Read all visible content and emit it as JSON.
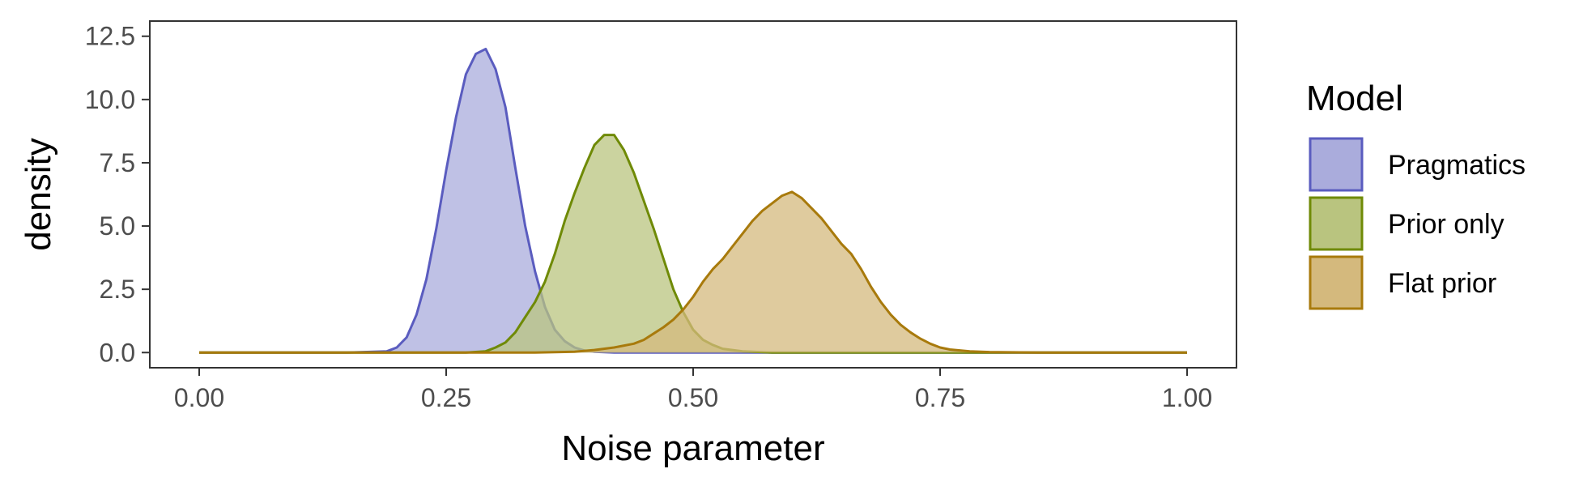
{
  "chart_data": {
    "type": "area",
    "subtype": "density",
    "xlabel": "Noise parameter",
    "ylabel": "density",
    "xlim": [
      0,
      1
    ],
    "ylim": [
      0,
      12.5
    ],
    "xticks": [
      "0.00",
      "0.25",
      "0.50",
      "0.75",
      "1.00"
    ],
    "yticks": [
      "0.0",
      "2.5",
      "5.0",
      "7.5",
      "10.0",
      "12.5"
    ],
    "grid": false,
    "legend": {
      "title": "Model",
      "position": "right"
    },
    "series": [
      {
        "name": "Pragmatics",
        "fill": "#aaacdc",
        "stroke": "#5a5cbf",
        "x": [
          0,
          0.15,
          0.19,
          0.2,
          0.21,
          0.22,
          0.23,
          0.24,
          0.25,
          0.26,
          0.27,
          0.28,
          0.29,
          0.3,
          0.31,
          0.32,
          0.33,
          0.34,
          0.35,
          0.36,
          0.37,
          0.38,
          0.39,
          0.4,
          0.42,
          0.45,
          1
        ],
        "y": [
          0,
          0,
          0.05,
          0.2,
          0.6,
          1.5,
          2.9,
          4.9,
          7.2,
          9.3,
          11.0,
          11.8,
          12.0,
          11.2,
          9.7,
          7.3,
          5.0,
          3.2,
          1.8,
          0.9,
          0.45,
          0.2,
          0.08,
          0.03,
          0,
          0,
          0
        ]
      },
      {
        "name": "Prior only",
        "fill": "#b9c47f",
        "stroke": "#6f8a06",
        "x": [
          0,
          0.27,
          0.29,
          0.3,
          0.31,
          0.32,
          0.33,
          0.34,
          0.35,
          0.36,
          0.37,
          0.38,
          0.39,
          0.4,
          0.41,
          0.42,
          0.43,
          0.44,
          0.45,
          0.46,
          0.47,
          0.48,
          0.49,
          0.5,
          0.51,
          0.52,
          0.53,
          0.55,
          0.58,
          0.6,
          1
        ],
        "y": [
          0,
          0,
          0.05,
          0.2,
          0.4,
          0.8,
          1.4,
          2.0,
          2.8,
          3.9,
          5.2,
          6.3,
          7.3,
          8.2,
          8.6,
          8.6,
          8.0,
          7.1,
          6.0,
          4.9,
          3.7,
          2.5,
          1.6,
          0.9,
          0.5,
          0.3,
          0.15,
          0.05,
          0,
          0,
          0
        ]
      },
      {
        "name": "Flat prior",
        "fill": "#d4b97d",
        "stroke": "#a87a0c",
        "x": [
          0,
          0.34,
          0.38,
          0.4,
          0.42,
          0.44,
          0.45,
          0.46,
          0.47,
          0.48,
          0.49,
          0.5,
          0.51,
          0.52,
          0.53,
          0.54,
          0.55,
          0.56,
          0.57,
          0.58,
          0.59,
          0.6,
          0.61,
          0.62,
          0.63,
          0.64,
          0.65,
          0.66,
          0.67,
          0.68,
          0.69,
          0.7,
          0.71,
          0.72,
          0.73,
          0.74,
          0.75,
          0.76,
          0.78,
          0.8,
          0.85,
          1
        ],
        "y": [
          0,
          0,
          0.03,
          0.1,
          0.2,
          0.35,
          0.5,
          0.75,
          1.0,
          1.3,
          1.7,
          2.2,
          2.8,
          3.3,
          3.7,
          4.2,
          4.7,
          5.2,
          5.6,
          5.9,
          6.2,
          6.35,
          6.1,
          5.7,
          5.3,
          4.8,
          4.3,
          3.9,
          3.3,
          2.6,
          2.0,
          1.5,
          1.1,
          0.8,
          0.55,
          0.35,
          0.2,
          0.12,
          0.05,
          0.02,
          0,
          0
        ]
      }
    ]
  }
}
